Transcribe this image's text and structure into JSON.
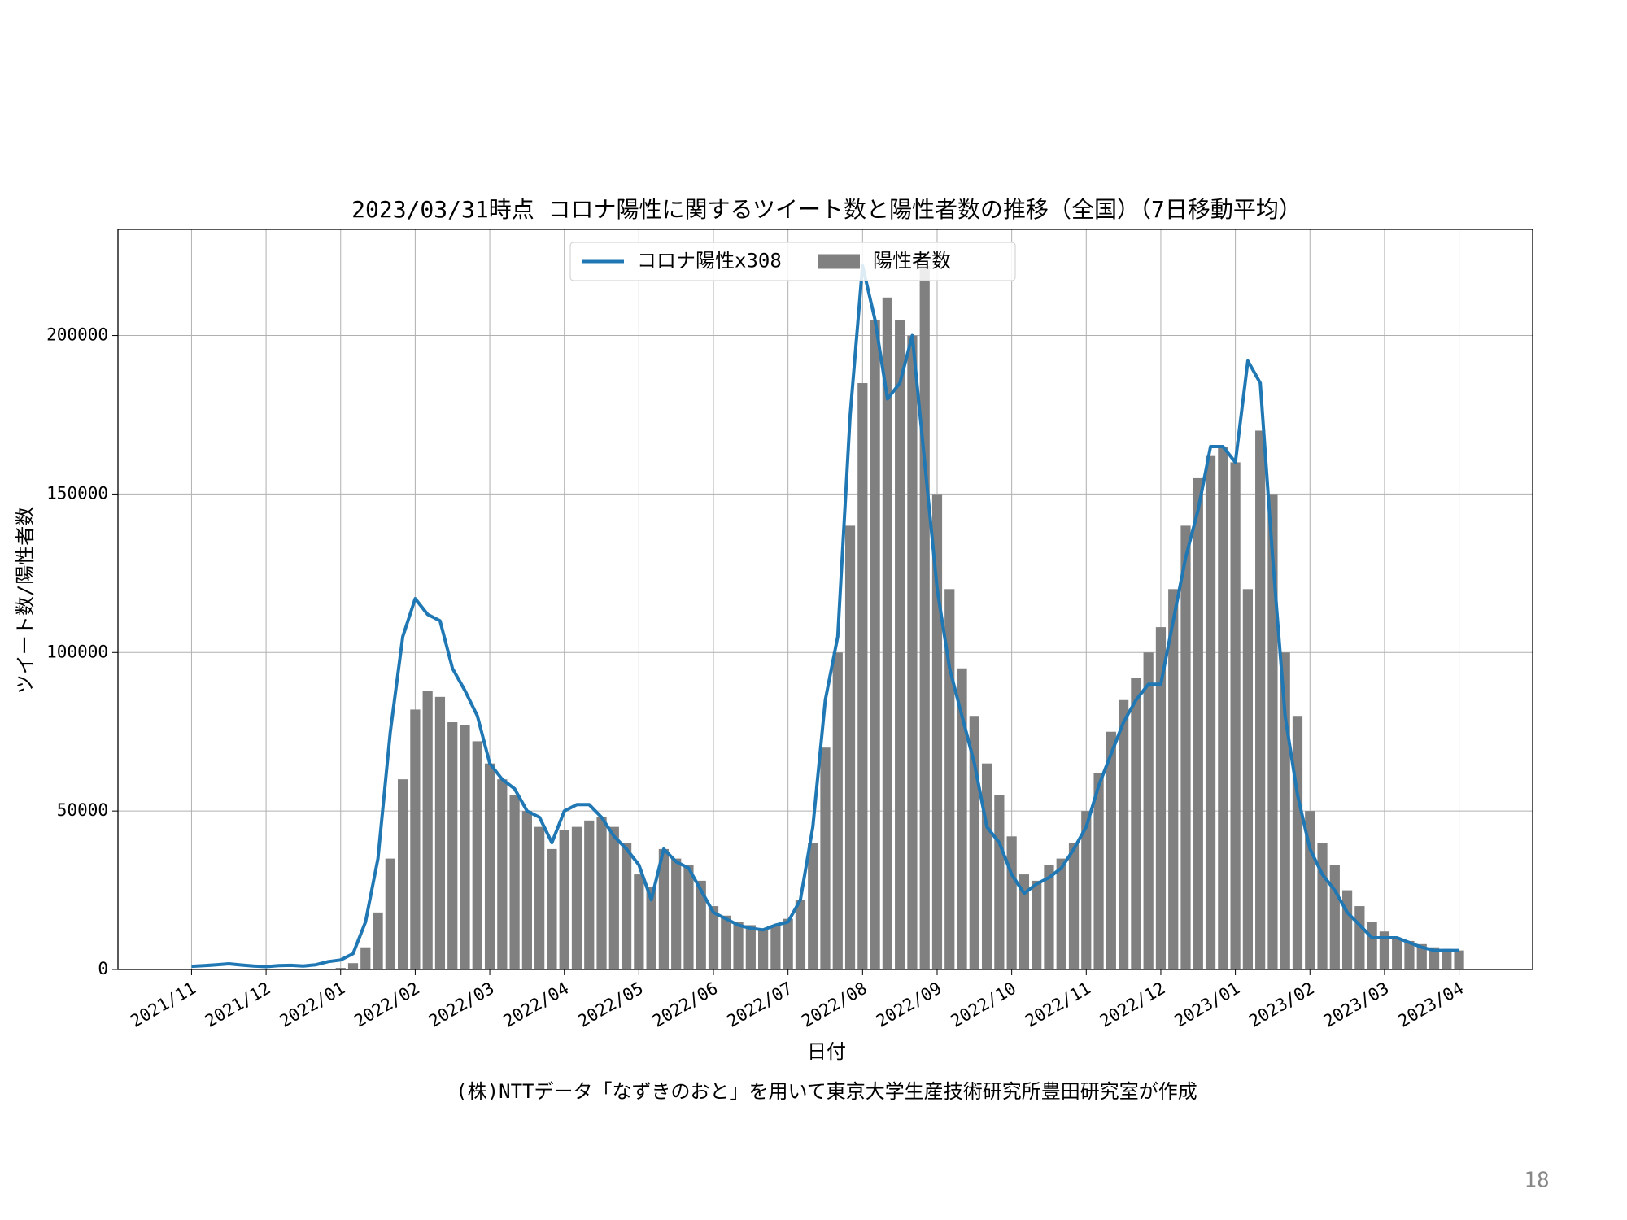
{
  "chart_data": {
    "type": "bar-line",
    "title": "2023/03/31時点 コロナ陽性に関するツイート数と陽性者数の推移（全国）（7日移動平均）",
    "xlabel": "日付",
    "ylabel": "ツイート数/陽性者数",
    "categories": [
      "2021/11",
      null,
      null,
      null,
      null,
      null,
      "2021/12",
      null,
      null,
      null,
      null,
      null,
      "2022/01",
      null,
      null,
      null,
      null,
      null,
      "2022/02",
      null,
      null,
      null,
      null,
      null,
      "2022/03",
      null,
      null,
      null,
      null,
      null,
      "2022/04",
      null,
      null,
      null,
      null,
      null,
      "2022/05",
      null,
      null,
      null,
      null,
      null,
      "2022/06",
      null,
      null,
      null,
      null,
      null,
      "2022/07",
      null,
      null,
      null,
      null,
      null,
      "2022/08",
      null,
      null,
      null,
      null,
      null,
      "2022/09",
      null,
      null,
      null,
      null,
      null,
      "2022/10",
      null,
      null,
      null,
      null,
      null,
      "2022/11",
      null,
      null,
      null,
      null,
      null,
      "2022/12",
      null,
      null,
      null,
      null,
      null,
      "2023/01",
      null,
      null,
      null,
      null,
      null,
      "2023/02",
      null,
      null,
      null,
      null,
      null,
      "2023/03",
      null,
      null,
      null,
      null,
      null,
      "2023/04"
    ],
    "series": [
      {
        "name": "陽性者数",
        "kind": "bar",
        "color": "#808080",
        "values": [
          200,
          200,
          200,
          200,
          200,
          200,
          200,
          200,
          200,
          200,
          200,
          200,
          500,
          2000,
          7000,
          18000,
          35000,
          60000,
          82000,
          88000,
          86000,
          78000,
          77000,
          72000,
          65000,
          60000,
          55000,
          50000,
          45000,
          38000,
          44000,
          45000,
          47000,
          48000,
          45000,
          40000,
          30000,
          26000,
          38000,
          35000,
          33000,
          28000,
          20000,
          17000,
          15000,
          14000,
          13000,
          14000,
          16000,
          22000,
          40000,
          70000,
          100000,
          140000,
          185000,
          205000,
          212000,
          205000,
          200000,
          222000,
          150000,
          120000,
          95000,
          80000,
          65000,
          55000,
          42000,
          30000,
          28000,
          33000,
          35000,
          40000,
          50000,
          62000,
          75000,
          85000,
          92000,
          100000,
          108000,
          120000,
          140000,
          155000,
          162000,
          165000,
          160000,
          120000,
          170000,
          150000,
          100000,
          80000,
          50000,
          40000,
          33000,
          25000,
          20000,
          15000,
          12000,
          10000,
          9000,
          8000,
          7000,
          6500,
          6000
        ]
      },
      {
        "name": "コロナ陽性x308",
        "kind": "line",
        "color": "#1f77b4",
        "values": [
          1000,
          1200,
          1500,
          1800,
          1400,
          1100,
          900,
          1200,
          1300,
          1100,
          1500,
          2500,
          3000,
          5000,
          15000,
          35000,
          75000,
          105000,
          117000,
          112000,
          110000,
          95000,
          88000,
          80000,
          65000,
          60000,
          57000,
          50000,
          48000,
          40000,
          50000,
          52000,
          52000,
          48000,
          42000,
          38000,
          33000,
          22000,
          38000,
          34000,
          32000,
          25000,
          18000,
          16000,
          14000,
          13000,
          12500,
          14000,
          15000,
          22000,
          45000,
          85000,
          105000,
          175000,
          222000,
          205000,
          180000,
          185000,
          200000,
          160000,
          120000,
          95000,
          80000,
          65000,
          45000,
          40000,
          30000,
          24000,
          27000,
          29000,
          32000,
          38000,
          45000,
          58000,
          68000,
          78000,
          85000,
          90000,
          90000,
          110000,
          130000,
          145000,
          165000,
          165000,
          160000,
          192000,
          185000,
          130000,
          80000,
          55000,
          38000,
          30000,
          25000,
          18000,
          14000,
          10000,
          10000,
          10000,
          8500,
          7000,
          6000,
          6000,
          6000
        ]
      }
    ],
    "ylim": [
      0,
      233500
    ],
    "yticks": [
      0,
      50000,
      100000,
      150000,
      200000
    ],
    "grid": true,
    "legend": "upper center"
  },
  "footer": {
    "credit": "(株)NTTデータ「なずきのおと」を用いて東京大学生産技術研究所豊田研究室が作成",
    "page_number": "18"
  }
}
